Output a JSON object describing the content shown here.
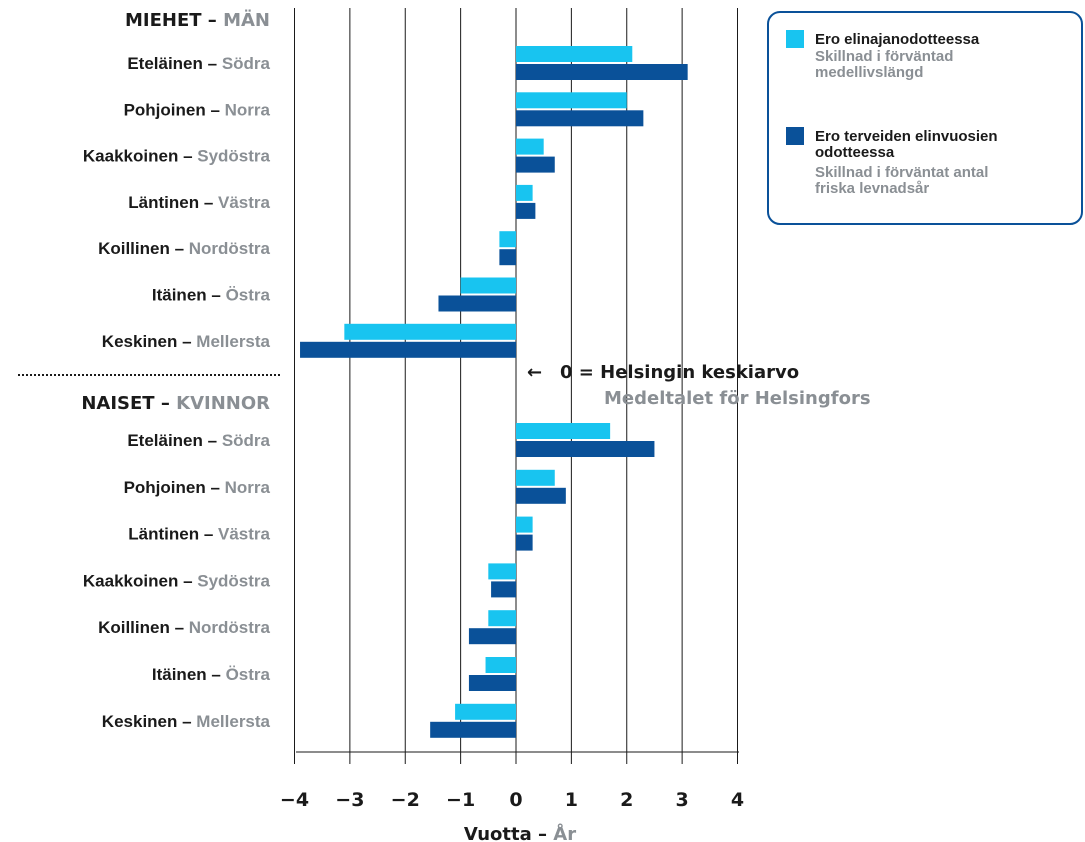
{
  "chart_data": {
    "type": "bar",
    "orientation": "horizontal",
    "xlim": [
      -4,
      4
    ],
    "xticks": [
      "−4",
      "−3",
      "−2",
      "−1",
      "0",
      "1",
      "2",
      "3",
      "4"
    ],
    "xlabel": {
      "fi": "Vuotta",
      "sep": " – ",
      "sv": "År"
    },
    "groups": [
      {
        "title": {
          "fi": "MIEHET",
          "sep": " – ",
          "sv": "MÄN"
        },
        "categories": [
          {
            "fi": "Eteläinen",
            "sv": "Södra"
          },
          {
            "fi": "Pohjoinen",
            "sv": "Norra"
          },
          {
            "fi": "Kaakkoinen",
            "sv": "Sydöstra"
          },
          {
            "fi": "Läntinen",
            "sv": "Västra"
          },
          {
            "fi": "Koillinen",
            "sv": "Nordöstra"
          },
          {
            "fi": "Itäinen",
            "sv": "Östra"
          },
          {
            "fi": "Keskinen",
            "sv": "Mellersta"
          }
        ],
        "series": [
          {
            "values": [
              2.1,
              2.0,
              0.5,
              0.3,
              -0.3,
              -1.0,
              -3.1
            ]
          },
          {
            "values": [
              3.1,
              2.3,
              0.7,
              0.35,
              -0.3,
              -1.4,
              -3.9
            ]
          }
        ]
      },
      {
        "title": {
          "fi": "NAISET",
          "sep": " – ",
          "sv": "KVINNOR"
        },
        "categories": [
          {
            "fi": "Eteläinen",
            "sv": "Södra"
          },
          {
            "fi": "Pohjoinen",
            "sv": "Norra"
          },
          {
            "fi": "Läntinen",
            "sv": "Västra"
          },
          {
            "fi": "Kaakkoinen",
            "sv": "Sydöstra"
          },
          {
            "fi": "Koillinen",
            "sv": "Nordöstra"
          },
          {
            "fi": "Itäinen",
            "sv": "Östra"
          },
          {
            "fi": "Keskinen",
            "sv": "Mellersta"
          }
        ],
        "series": [
          {
            "values": [
              1.7,
              0.7,
              0.3,
              -0.5,
              -0.5,
              -0.55,
              -1.1
            ]
          },
          {
            "values": [
              2.5,
              0.9,
              0.3,
              -0.45,
              -0.85,
              -0.85,
              -1.55
            ]
          }
        ]
      }
    ],
    "annotation": {
      "arrow": "←",
      "text_fi": "0 = Helsingin keskiarvo",
      "text_sv": "Medeltalet för Helsingfors"
    },
    "legend": {
      "placement": "top-right",
      "items": [
        {
          "fi": "Ero elinajanodotteessa",
          "sv_lines": [
            "Skillnad i förväntad",
            "medellivslängd"
          ],
          "color": "#18c4f0"
        },
        {
          "fi_lines": [
            "Ero terveiden elinvuosien",
            "odotteessa"
          ],
          "sv_lines": [
            "Skillnad i förväntat antal",
            "friska levnadsår"
          ],
          "color": "#0a5199"
        }
      ]
    },
    "colors": {
      "series1": "#18c4f0",
      "series2": "#0a5199",
      "label_sv": "#8a8f94",
      "label_fi": "#1a1a1a",
      "legend_border": "#0a5199"
    },
    "grid": true
  }
}
